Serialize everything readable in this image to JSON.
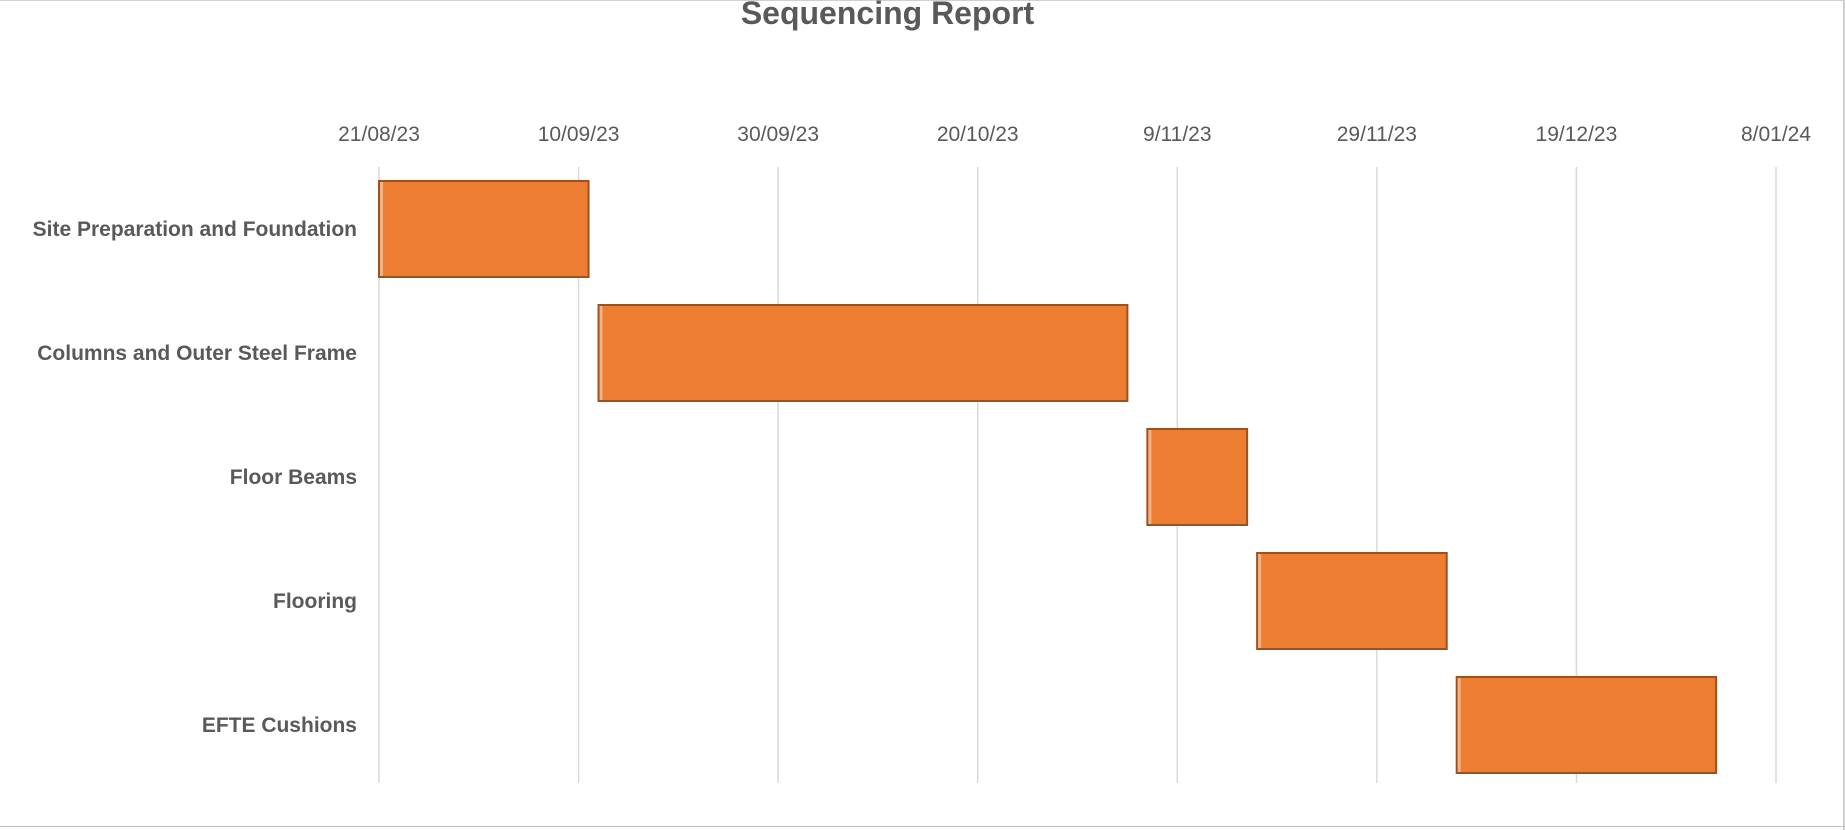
{
  "chart_data": {
    "type": "bar",
    "orientation": "horizontal-gantt",
    "title": "Sequencing Report",
    "xlabel": "",
    "ylabel": "",
    "x_axis_position": "top",
    "xlim": [
      "2023-08-21",
      "2024-01-08"
    ],
    "x_ticks": [
      "21/08/23",
      "10/09/23",
      "30/09/23",
      "20/10/23",
      "9/11/23",
      "29/11/23",
      "19/12/23",
      "8/01/24"
    ],
    "categories": [
      "Site Preparation and Foundation",
      "Columns and Outer Steel Frame",
      "Floor Beams",
      "Flooring",
      "EFTE Cushions"
    ],
    "series": [
      {
        "start": [
          "2023-08-21",
          "2023-09-12",
          "2023-11-06",
          "2023-11-17",
          "2023-12-07"
        ],
        "end": [
          "2023-09-11",
          "2023-11-04",
          "2023-11-16",
          "2023-12-06",
          "2024-01-02"
        ]
      }
    ],
    "grid": true,
    "legend": "none",
    "colors": {
      "bar": "#ed7d31",
      "bar_edge": "#9c5220",
      "grid": "#d9d9d9",
      "text": "#595959"
    }
  }
}
